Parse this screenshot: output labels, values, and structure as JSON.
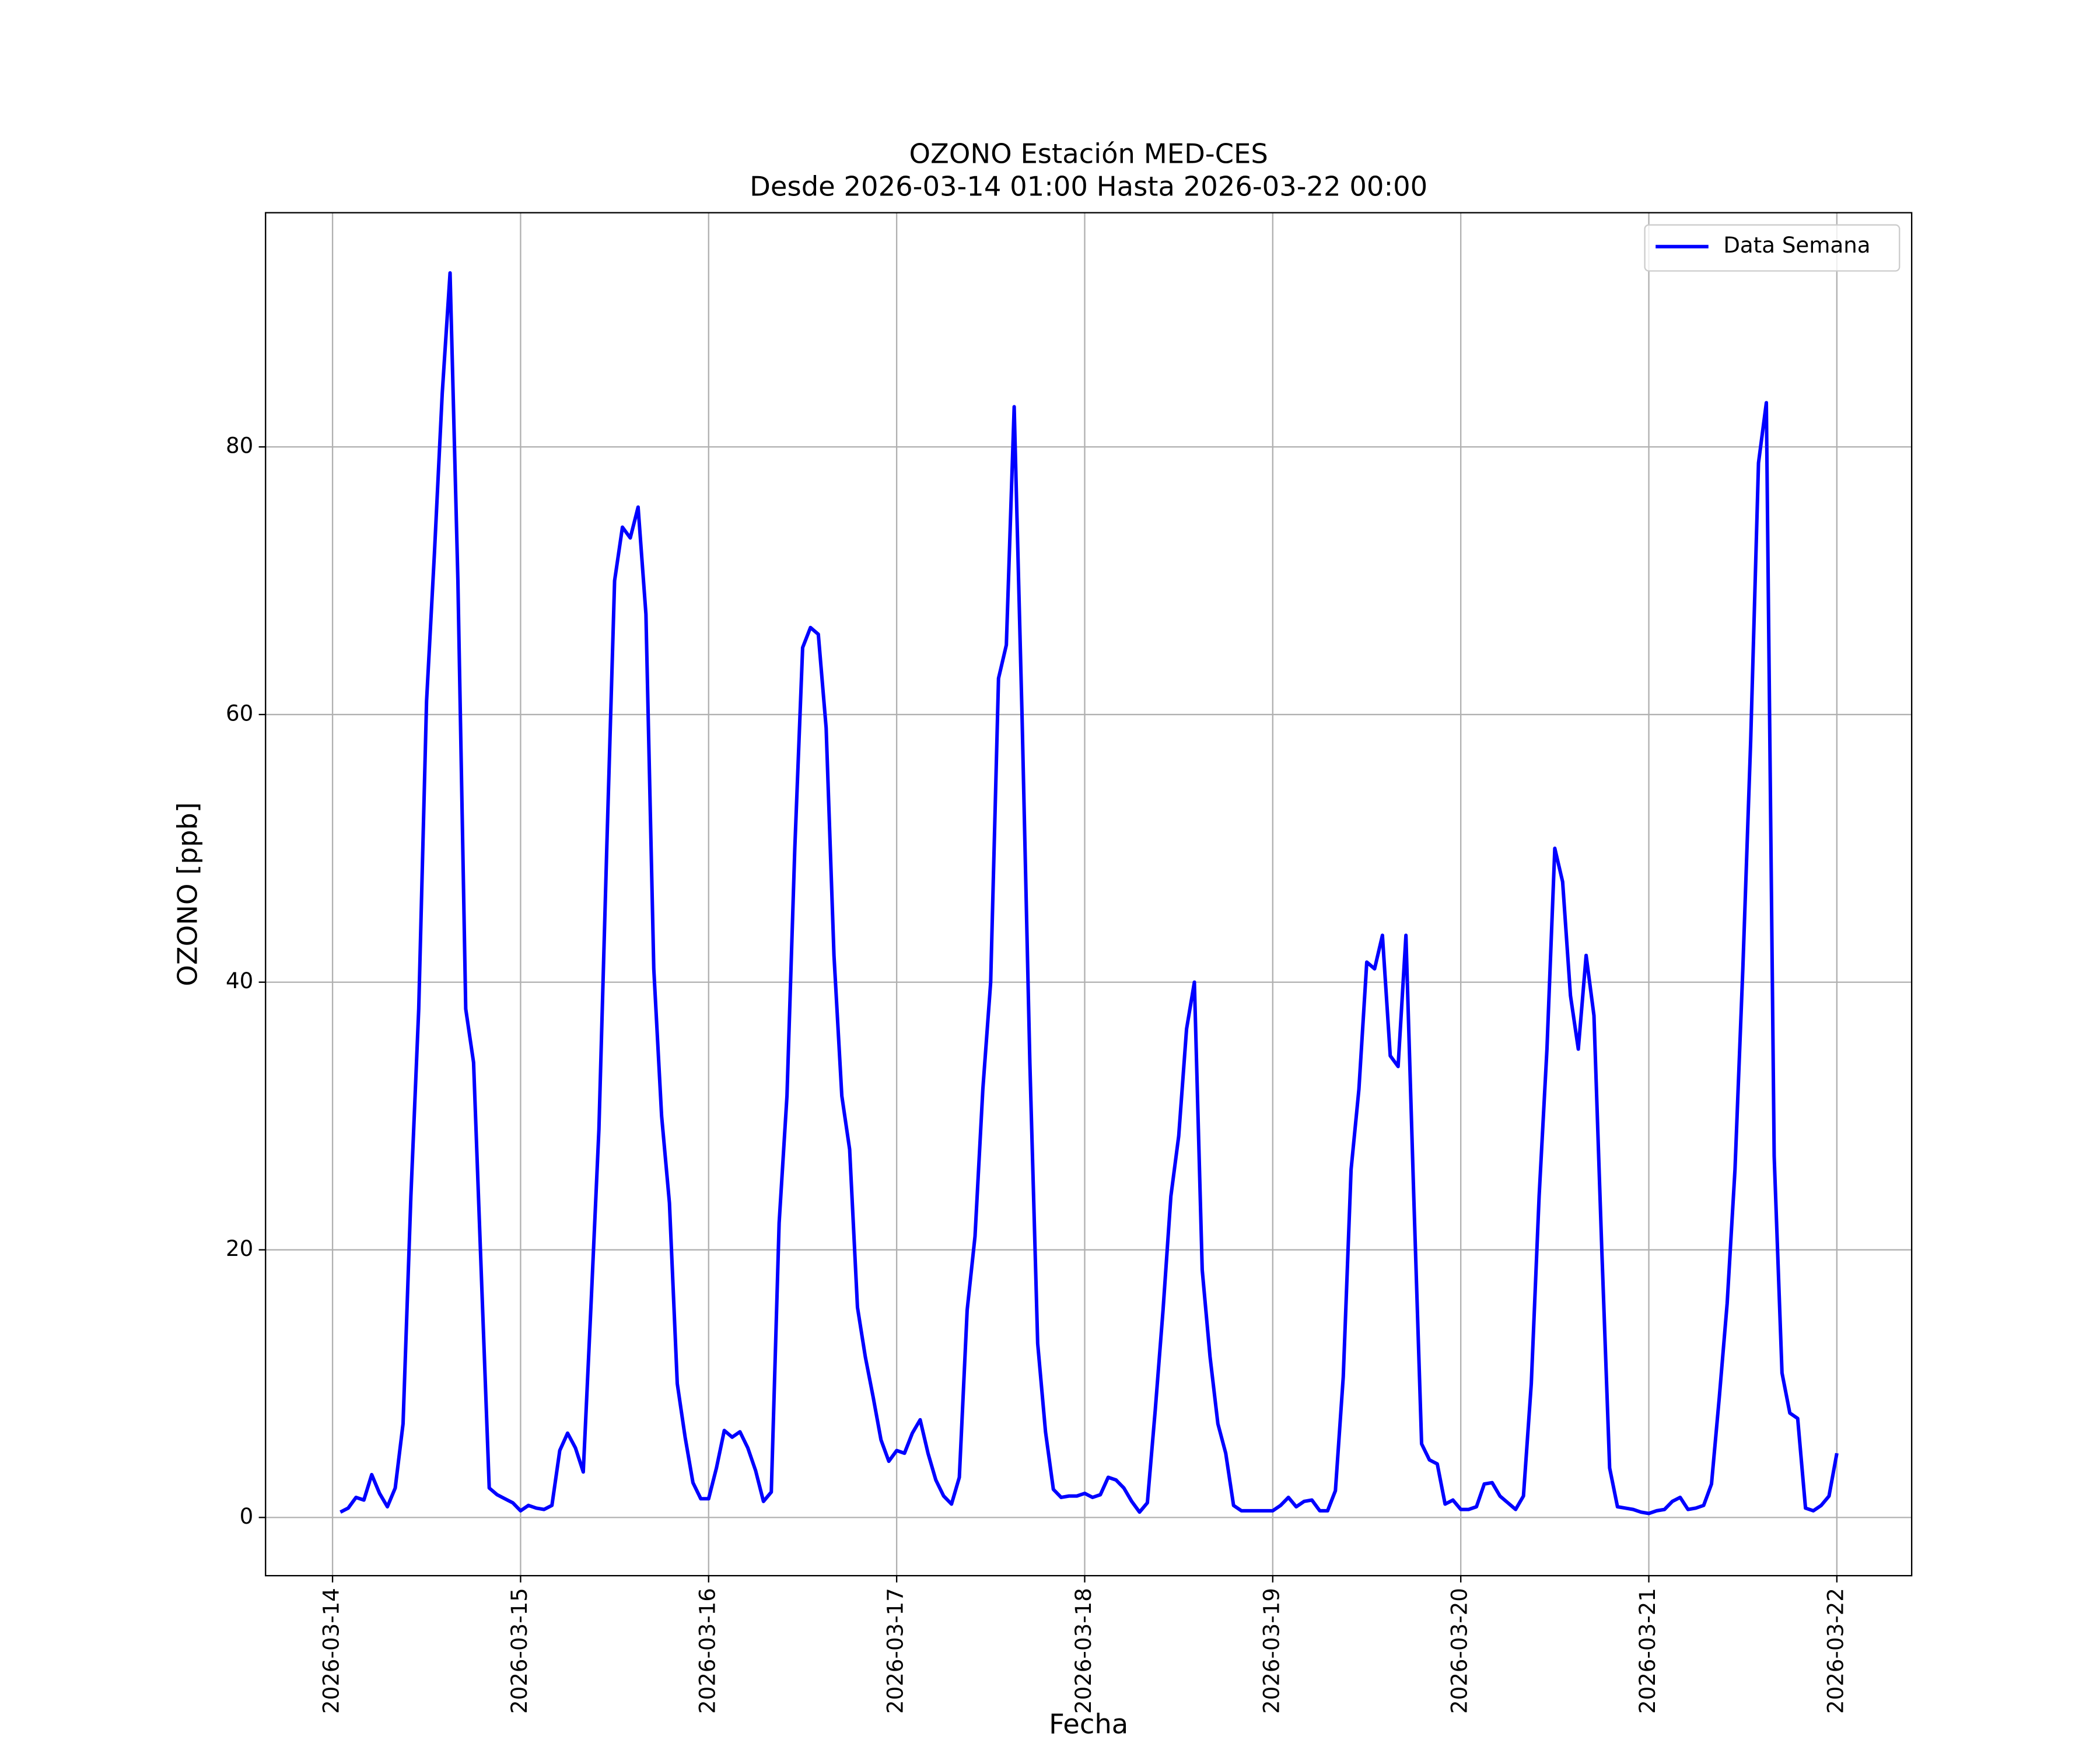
{
  "chart_data": {
    "type": "line",
    "title": "OZONO Estación MED-CES",
    "subtitle": "Desde 2026-03-14 01:00 Hasta 2026-03-22 00:00",
    "xlabel": "Fecha",
    "ylabel": "OZONO [ppb]",
    "x": [
      "2026-03-14 01:00",
      "2026-03-14 02:00",
      "2026-03-14 03:00",
      "2026-03-14 04:00",
      "2026-03-14 05:00",
      "2026-03-14 06:00",
      "2026-03-14 07:00",
      "2026-03-14 08:00",
      "2026-03-14 09:00",
      "2026-03-14 10:00",
      "2026-03-14 11:00",
      "2026-03-14 12:00",
      "2026-03-14 13:00",
      "2026-03-14 14:00",
      "2026-03-14 15:00",
      "2026-03-14 16:00",
      "2026-03-14 17:00",
      "2026-03-14 18:00",
      "2026-03-14 19:00",
      "2026-03-14 20:00",
      "2026-03-14 21:00",
      "2026-03-14 22:00",
      "2026-03-14 23:00",
      "2026-03-15 00:00",
      "2026-03-15 01:00",
      "2026-03-15 02:00",
      "2026-03-15 03:00",
      "2026-03-15 04:00",
      "2026-03-15 05:00",
      "2026-03-15 06:00",
      "2026-03-15 07:00",
      "2026-03-15 08:00",
      "2026-03-15 09:00",
      "2026-03-15 10:00",
      "2026-03-15 11:00",
      "2026-03-15 12:00",
      "2026-03-15 13:00",
      "2026-03-15 14:00",
      "2026-03-15 15:00",
      "2026-03-15 16:00",
      "2026-03-15 17:00",
      "2026-03-15 18:00",
      "2026-03-15 19:00",
      "2026-03-15 20:00",
      "2026-03-15 21:00",
      "2026-03-15 22:00",
      "2026-03-15 23:00",
      "2026-03-16 00:00",
      "2026-03-16 01:00",
      "2026-03-16 02:00",
      "2026-03-16 03:00",
      "2026-03-16 04:00",
      "2026-03-16 05:00",
      "2026-03-16 06:00",
      "2026-03-16 07:00",
      "2026-03-16 08:00",
      "2026-03-16 09:00",
      "2026-03-16 10:00",
      "2026-03-16 11:00",
      "2026-03-16 12:00",
      "2026-03-16 13:00",
      "2026-03-16 14:00",
      "2026-03-16 15:00",
      "2026-03-16 16:00",
      "2026-03-16 17:00",
      "2026-03-16 18:00",
      "2026-03-16 19:00",
      "2026-03-16 20:00",
      "2026-03-16 21:00",
      "2026-03-16 22:00",
      "2026-03-16 23:00",
      "2026-03-17 00:00",
      "2026-03-17 01:00",
      "2026-03-17 02:00",
      "2026-03-17 03:00",
      "2026-03-17 04:00",
      "2026-03-17 05:00",
      "2026-03-17 06:00",
      "2026-03-17 07:00",
      "2026-03-17 08:00",
      "2026-03-17 09:00",
      "2026-03-17 10:00",
      "2026-03-17 11:00",
      "2026-03-17 12:00",
      "2026-03-17 13:00",
      "2026-03-17 14:00",
      "2026-03-17 15:00",
      "2026-03-17 16:00",
      "2026-03-17 17:00",
      "2026-03-17 18:00",
      "2026-03-17 19:00",
      "2026-03-17 20:00",
      "2026-03-17 21:00",
      "2026-03-17 22:00",
      "2026-03-17 23:00",
      "2026-03-18 00:00",
      "2026-03-18 01:00",
      "2026-03-18 02:00",
      "2026-03-18 03:00",
      "2026-03-18 04:00",
      "2026-03-18 05:00",
      "2026-03-18 06:00",
      "2026-03-18 07:00",
      "2026-03-18 08:00",
      "2026-03-18 09:00",
      "2026-03-18 10:00",
      "2026-03-18 11:00",
      "2026-03-18 12:00",
      "2026-03-18 13:00",
      "2026-03-18 14:00",
      "2026-03-18 15:00",
      "2026-03-18 16:00",
      "2026-03-18 17:00",
      "2026-03-18 18:00",
      "2026-03-18 19:00",
      "2026-03-18 20:00",
      "2026-03-18 21:00",
      "2026-03-18 22:00",
      "2026-03-18 23:00",
      "2026-03-19 00:00",
      "2026-03-19 01:00",
      "2026-03-19 02:00",
      "2026-03-19 03:00",
      "2026-03-19 04:00",
      "2026-03-19 05:00",
      "2026-03-19 06:00",
      "2026-03-19 07:00",
      "2026-03-19 08:00",
      "2026-03-19 09:00",
      "2026-03-19 10:00",
      "2026-03-19 11:00",
      "2026-03-19 12:00",
      "2026-03-19 13:00",
      "2026-03-19 14:00",
      "2026-03-19 15:00",
      "2026-03-19 16:00",
      "2026-03-19 17:00",
      "2026-03-19 18:00",
      "2026-03-19 19:00",
      "2026-03-19 20:00",
      "2026-03-19 21:00",
      "2026-03-19 22:00",
      "2026-03-19 23:00",
      "2026-03-20 00:00",
      "2026-03-20 01:00",
      "2026-03-20 02:00",
      "2026-03-20 03:00",
      "2026-03-20 04:00",
      "2026-03-20 05:00",
      "2026-03-20 06:00",
      "2026-03-20 07:00",
      "2026-03-20 08:00",
      "2026-03-20 09:00",
      "2026-03-20 10:00",
      "2026-03-20 11:00",
      "2026-03-20 12:00",
      "2026-03-20 13:00",
      "2026-03-20 14:00",
      "2026-03-20 15:00",
      "2026-03-20 16:00",
      "2026-03-20 17:00",
      "2026-03-20 18:00",
      "2026-03-20 19:00",
      "2026-03-20 20:00",
      "2026-03-20 21:00",
      "2026-03-20 22:00",
      "2026-03-20 23:00",
      "2026-03-21 00:00",
      "2026-03-21 01:00",
      "2026-03-21 02:00",
      "2026-03-21 03:00",
      "2026-03-21 04:00",
      "2026-03-21 05:00",
      "2026-03-21 06:00",
      "2026-03-21 07:00",
      "2026-03-21 08:00",
      "2026-03-21 09:00",
      "2026-03-21 10:00",
      "2026-03-21 11:00",
      "2026-03-21 12:00",
      "2026-03-21 13:00",
      "2026-03-21 14:00",
      "2026-03-21 15:00",
      "2026-03-21 16:00",
      "2026-03-21 17:00",
      "2026-03-21 18:00",
      "2026-03-21 19:00",
      "2026-03-21 20:00",
      "2026-03-21 21:00",
      "2026-03-21 22:00",
      "2026-03-21 23:00",
      "2026-03-22 00:00"
    ],
    "series": [
      {
        "name": "Data Semana",
        "color": "#0000ff",
        "values": [
          0.4,
          0.7,
          1.5,
          1.3,
          3.2,
          1.8,
          0.8,
          2.2,
          7,
          24,
          38,
          61,
          72,
          84,
          93,
          70,
          38,
          34,
          18,
          2.2,
          1.7,
          1.4,
          1.1,
          0.5,
          0.9,
          0.7,
          0.6,
          0.9,
          5,
          6.3,
          5.2,
          3.4,
          16,
          29,
          50,
          70,
          74,
          73.2,
          75.5,
          67.5,
          41,
          30,
          23.5,
          10,
          6,
          2.6,
          1.4,
          1.4,
          3.7,
          6.5,
          6,
          6.4,
          5.2,
          3.5,
          1.2,
          1.9,
          22,
          31.5,
          50,
          65,
          66.5,
          66,
          59,
          42,
          31.5,
          27.5,
          15.7,
          12,
          9,
          5.8,
          4.2,
          5,
          4.8,
          6.3,
          7.3,
          4.8,
          2.8,
          1.6,
          1,
          3,
          15.5,
          21,
          32,
          40,
          62.7,
          65.2,
          83,
          60,
          34,
          13,
          6.4,
          2.1,
          1.5,
          1.6,
          1.6,
          1.8,
          1.5,
          1.7,
          3,
          2.8,
          2.2,
          1.2,
          0.4,
          1.1,
          8,
          15.5,
          24,
          28.5,
          36.5,
          40,
          18.5,
          12,
          7,
          4.8,
          0.9,
          0.5,
          0.5,
          0.5,
          0.5,
          0.5,
          0.9,
          1.5,
          0.8,
          1.2,
          1.3,
          0.5,
          0.5,
          2,
          10.5,
          26,
          32,
          41.5,
          41,
          43.5,
          34.5,
          33.7,
          43.5,
          24,
          5.5,
          4.3,
          4,
          1,
          1.3,
          0.6,
          0.6,
          0.8,
          2.5,
          2.6,
          1.6,
          1.1,
          0.6,
          1.6,
          10,
          24,
          35,
          50,
          47.5,
          39,
          35,
          42,
          37.5,
          20,
          3.7,
          0.8,
          0.7,
          0.6,
          0.4,
          0.3,
          0.5,
          0.6,
          1.2,
          1.5,
          0.6,
          0.7,
          0.9,
          2.5,
          9,
          16,
          26,
          41,
          58,
          78.8,
          83.3,
          27,
          10.8,
          7.8,
          7.4,
          0.7,
          0.5,
          0.9,
          1.6,
          4.8
        ]
      }
    ],
    "xlim": [
      "2026-03-13 15:27",
      "2026-03-22 09:33"
    ],
    "xticks": [
      "2026-03-14",
      "2026-03-15",
      "2026-03-16",
      "2026-03-17",
      "2026-03-18",
      "2026-03-19",
      "2026-03-20",
      "2026-03-21",
      "2026-03-22"
    ],
    "ylim": [
      -4.35,
      97.5
    ],
    "yticks": [
      0,
      20,
      40,
      60,
      80
    ],
    "grid": true,
    "legend": "upper right"
  }
}
